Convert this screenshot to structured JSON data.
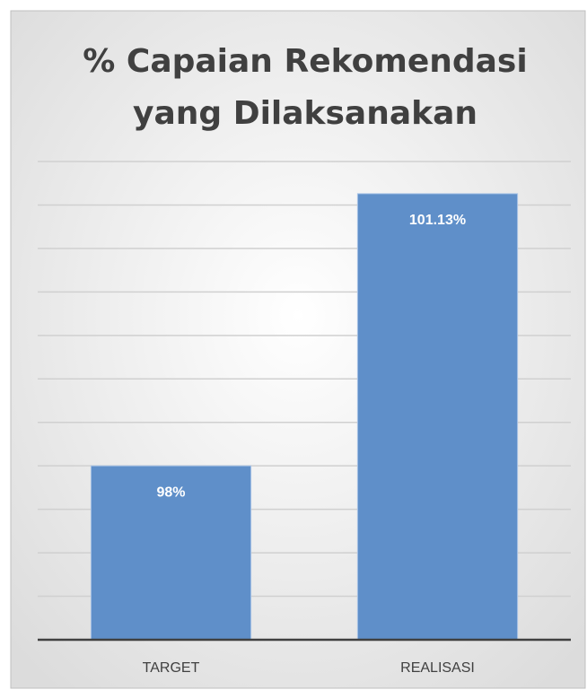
{
  "chart_data": {
    "type": "bar",
    "title": [
      "% Capaian Rekomendasi",
      "yang Dilaksanakan"
    ],
    "categories": [
      "TARGET",
      "REALISASI"
    ],
    "values": [
      98,
      101.13
    ],
    "value_labels": [
      "98%",
      "101.13%"
    ],
    "color": "#5f8fc9",
    "ylim": [
      96,
      101.5
    ],
    "yticks": [
      96,
      96.5,
      97,
      97.5,
      98,
      98.5,
      99,
      99.5,
      100,
      100.5,
      101,
      101.5
    ],
    "grid": true
  }
}
